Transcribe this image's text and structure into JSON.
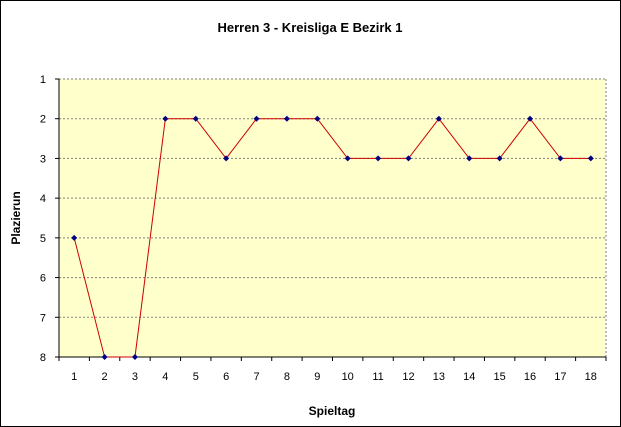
{
  "chart_data": {
    "type": "line",
    "title": "Herren 3 - Kreisliga E Bezirk 1",
    "xlabel": "Spieltag",
    "ylabel": "Plazierun",
    "x": [
      1,
      2,
      3,
      4,
      5,
      6,
      7,
      8,
      9,
      10,
      11,
      12,
      13,
      14,
      15,
      16,
      17,
      18
    ],
    "series": [
      {
        "values": [
          5,
          8,
          8,
          2,
          2,
          3,
          2,
          2,
          2,
          3,
          3,
          3,
          2,
          3,
          3,
          2,
          3,
          3
        ]
      }
    ],
    "y_ticks": [
      1,
      2,
      3,
      4,
      5,
      6,
      7,
      8
    ],
    "ylim": [
      1,
      8
    ],
    "y_inverted": true,
    "grid": "horizontal-dashed",
    "plot_background": "#ffffcc",
    "line_color": "#cc0000",
    "marker_color": "#000080"
  }
}
